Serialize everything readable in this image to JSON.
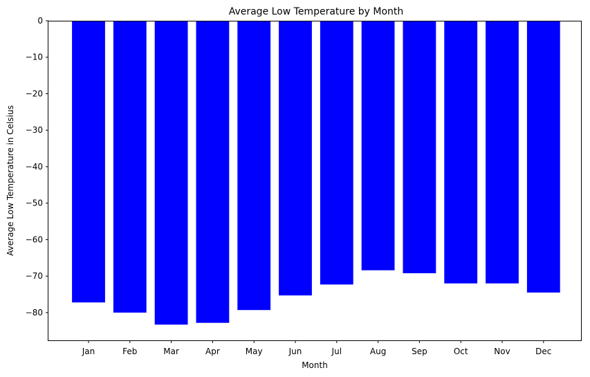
{
  "chart_data": {
    "type": "bar",
    "title": "Average Low Temperature by Month",
    "xlabel": "Month",
    "ylabel": "Average Low Temperature in Celsius",
    "categories": [
      "Jan",
      "Feb",
      "Mar",
      "Apr",
      "May",
      "Jun",
      "Jul",
      "Aug",
      "Sep",
      "Oct",
      "Nov",
      "Dec"
    ],
    "values": [
      -77.2,
      -80.0,
      -83.3,
      -82.8,
      -79.3,
      -75.3,
      -72.3,
      -68.4,
      -69.2,
      -72.0,
      -72.0,
      -74.5
    ],
    "ylim": [
      -87.6,
      0
    ],
    "yticks": [
      0,
      -10,
      -20,
      -30,
      -40,
      -50,
      -60,
      -70,
      -80
    ],
    "ytick_labels": [
      "0",
      "−10",
      "−20",
      "−30",
      "−40",
      "−50",
      "−60",
      "−70",
      "−80"
    ],
    "bar_color": "#0000ff",
    "grid": false,
    "legend": false
  }
}
